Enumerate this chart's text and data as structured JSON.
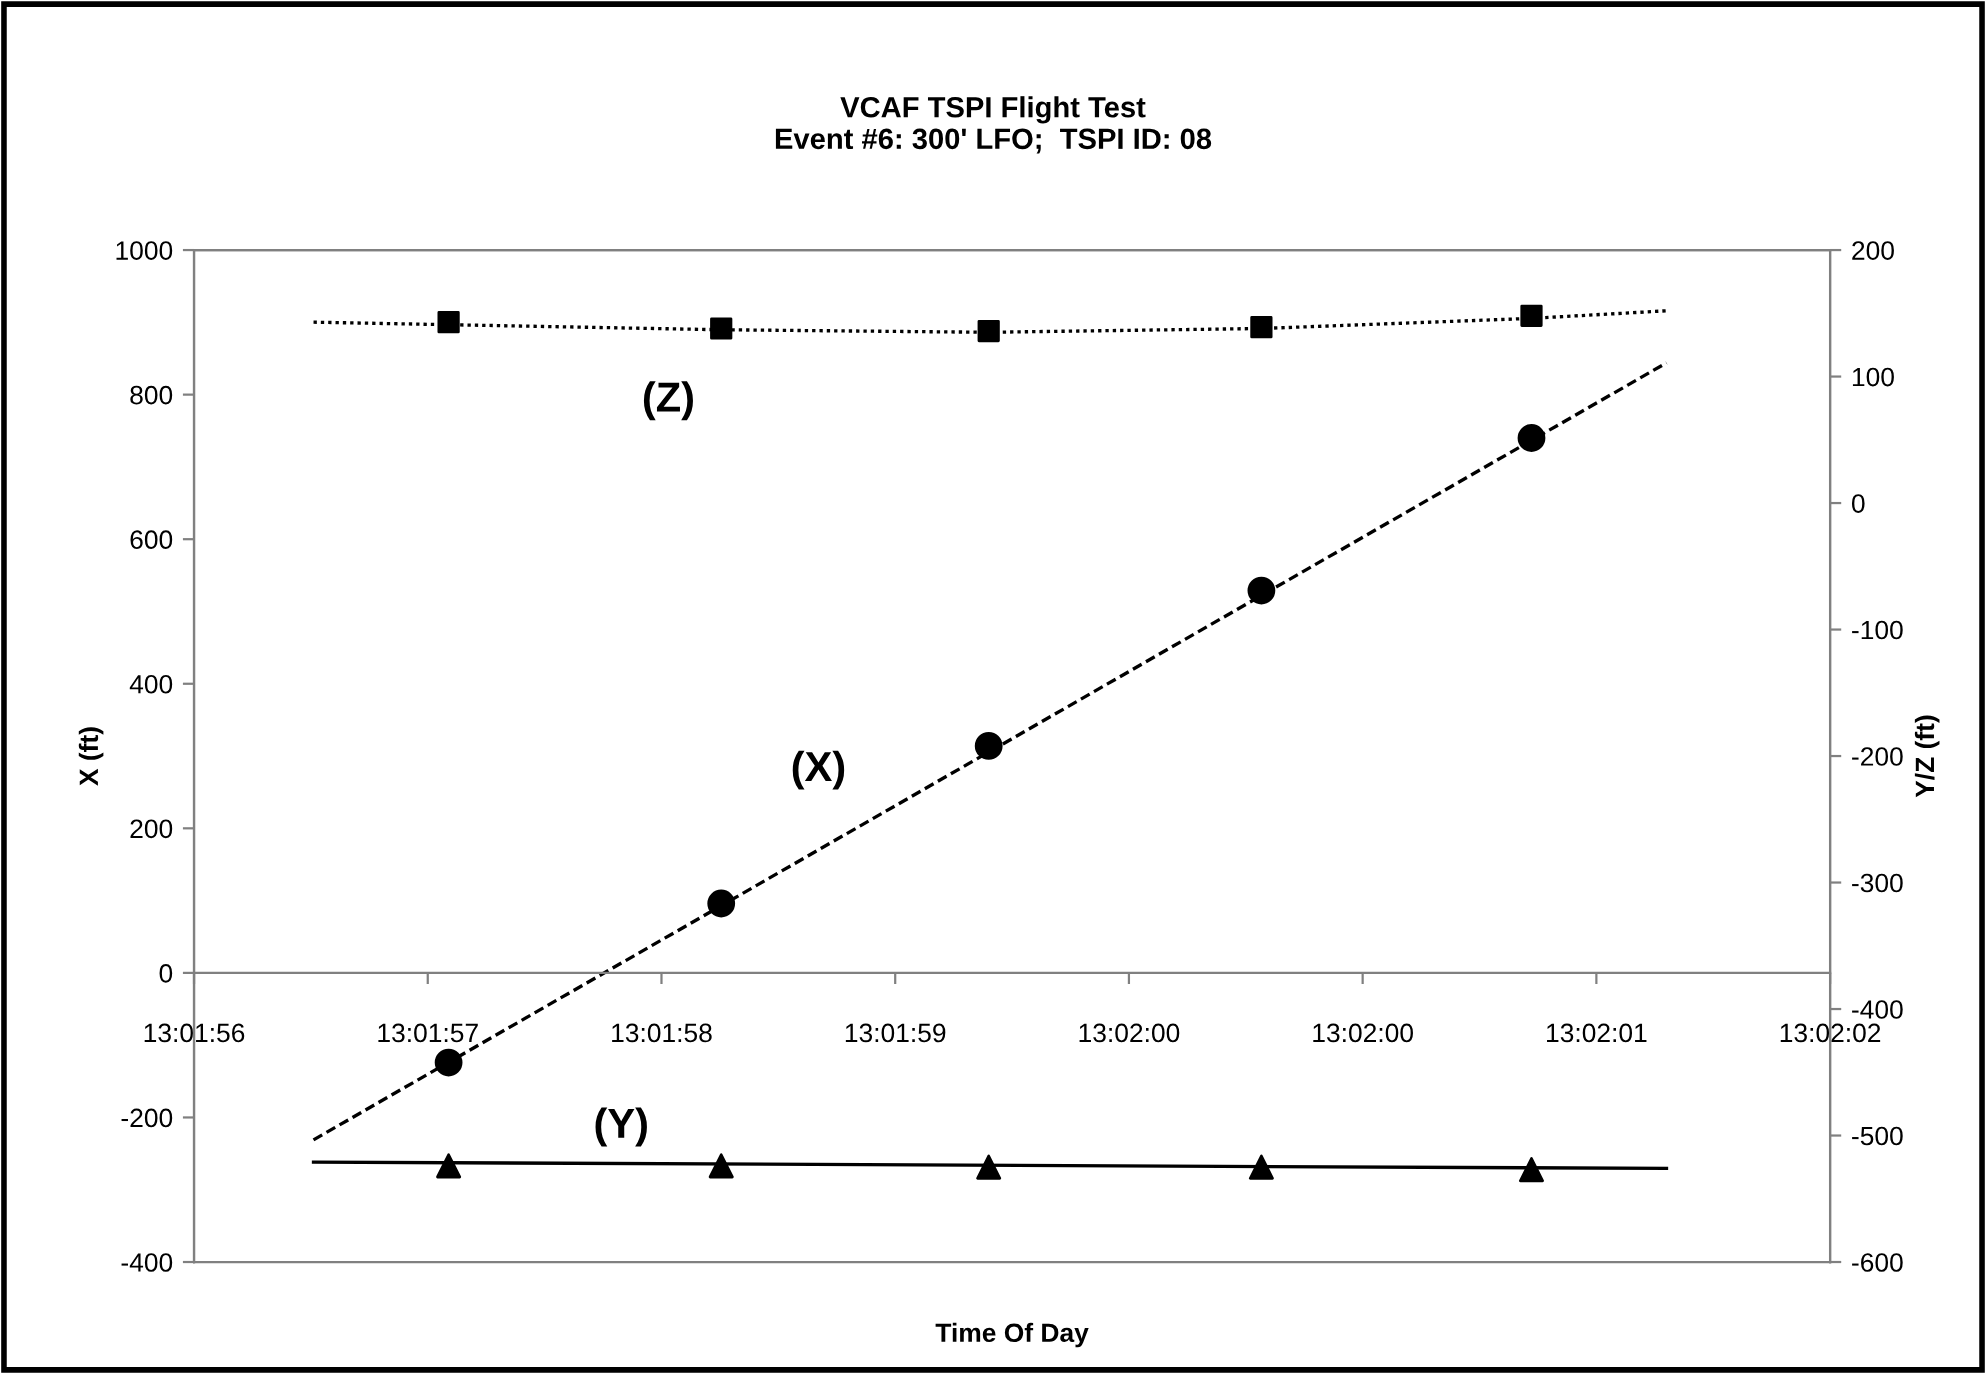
{
  "chart_data": {
    "type": "scatter",
    "title": "VCAF TSPI Flight Test\nEvent #6: 300' LFO;  TSPI ID: 08",
    "xlabel": "Time Of Day",
    "ylabel": "X (ft)",
    "y2label": "Y/Z (ft)",
    "series": [
      {
        "name": "(X)",
        "axis": "y",
        "marker": "circle",
        "color": "#000000",
        "x": [
          13.0324806,
          13.0327722,
          13.0330583,
          13.03335,
          13.0336389
        ],
        "values": [
          -124,
          96,
          314,
          529,
          740
        ]
      },
      {
        "type": "line",
        "axis": "y",
        "line_style": "dashed",
        "color": "#000000",
        "x": [
          13.0323361,
          13.0337833
        ],
        "values": [
          -231,
          844
        ]
      },
      {
        "name": "(Z)",
        "axis": "y2",
        "marker": "square",
        "color": "#000000",
        "x": [
          13.0324806,
          13.0327722,
          13.0330583,
          13.03335,
          13.0336389
        ],
        "values": [
          143,
          138,
          136,
          139,
          148
        ]
      },
      {
        "type": "line",
        "axis": "y2",
        "line_style": "dotted",
        "color": "#000000",
        "x": [
          13.0323361,
          13.0324806,
          13.0327722,
          13.0330583,
          13.03335,
          13.0336389,
          13.0337833
        ],
        "values": [
          143,
          141,
          137,
          135,
          138,
          146,
          152
        ]
      },
      {
        "name": "(Y)",
        "axis": "y2",
        "marker": "triangle",
        "color": "#000000",
        "x": [
          13.0324806,
          13.0327722,
          13.0330583,
          13.03335,
          13.0336389
        ],
        "values": [
          -524,
          -524,
          -525,
          -525,
          -527
        ]
      },
      {
        "type": "line",
        "axis": "y2",
        "line_style": "solid",
        "color": "#000000",
        "x": [
          13.0323361,
          13.0337833
        ],
        "values": [
          -521,
          -526
        ]
      }
    ],
    "xlim": [
      13.0322083,
      13.0339583
    ],
    "xticks": [
      {
        "value": 13.0322083,
        "label": "13:01:56"
      },
      {
        "value": 13.0324583,
        "label": "13:01:57"
      },
      {
        "value": 13.0327083,
        "label": "13:01:58"
      },
      {
        "value": 13.0329583,
        "label": "13:01:59"
      },
      {
        "value": 13.0332083,
        "label": "13:02:00"
      },
      {
        "value": 13.0334583,
        "label": "13:02:00"
      },
      {
        "value": 13.0337083,
        "label": "13:02:01"
      },
      {
        "value": 13.0339583,
        "label": "13:02:02"
      }
    ],
    "ylim": [
      -400,
      1000
    ],
    "yticks": [
      -400,
      -200,
      0,
      200,
      400,
      600,
      800,
      1000
    ],
    "y2lim": [
      -600,
      200
    ],
    "y2ticks": [
      -600,
      -500,
      -400,
      -300,
      -200,
      -100,
      0,
      100,
      200
    ],
    "grid": false,
    "legend": false
  }
}
